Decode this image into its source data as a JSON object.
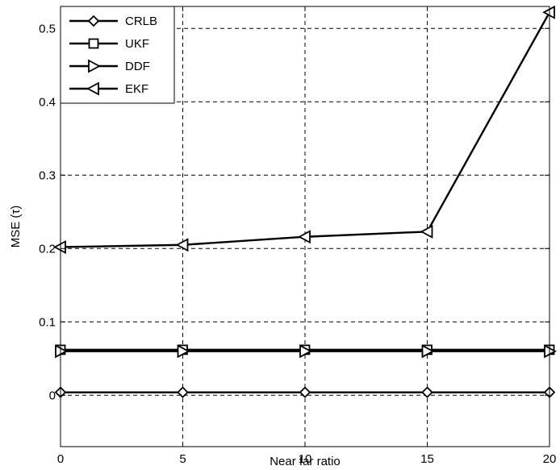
{
  "chart_data": {
    "type": "line",
    "xlabel": "Near far ratio",
    "ylabel": "MSE  (τ)",
    "xlim": [
      0,
      20
    ],
    "ylim": [
      -0.07,
      0.53
    ],
    "x": [
      0,
      5,
      10,
      15,
      20
    ],
    "xticks": [
      "0",
      "5",
      "10",
      "15",
      "20"
    ],
    "yticks": [
      "0",
      "0.1",
      "0.2",
      "0.3",
      "0.4",
      "0.5"
    ],
    "ytick_values": [
      0,
      0.1,
      0.2,
      0.3,
      0.4,
      0.5
    ],
    "grid": true,
    "legend_position": "top-left",
    "series": [
      {
        "name": "CRLB",
        "marker": "diamond",
        "values": [
          0.004,
          0.004,
          0.004,
          0.004,
          0.004
        ]
      },
      {
        "name": "UKF",
        "marker": "square",
        "values": [
          0.062,
          0.062,
          0.062,
          0.062,
          0.062
        ]
      },
      {
        "name": "DDF",
        "marker": "triangle-right",
        "values": [
          0.06,
          0.06,
          0.06,
          0.06,
          0.06
        ]
      },
      {
        "name": "EKF",
        "marker": "triangle-left",
        "values": [
          0.202,
          0.205,
          0.216,
          0.223,
          0.522
        ]
      }
    ]
  }
}
